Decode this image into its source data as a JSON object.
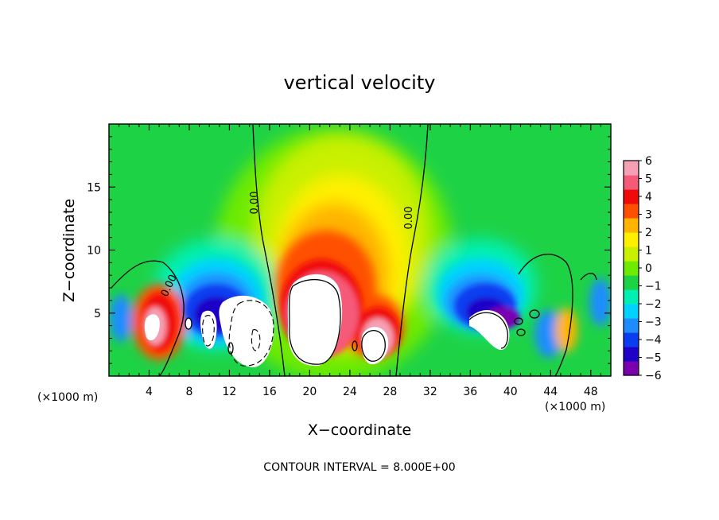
{
  "chart_data": {
    "type": "heatmap",
    "title": "vertical velocity",
    "xlabel": "X−coordinate",
    "ylabel": "Z−coordinate",
    "x_unit_label": "(×1000 m)",
    "y_unit_label": "(×1000 m)",
    "xlim": [
      0,
      50
    ],
    "ylim": [
      0,
      20
    ],
    "x_ticks": [
      4,
      8,
      12,
      16,
      20,
      24,
      28,
      32,
      36,
      40,
      44,
      48
    ],
    "x_tick_labels": [
      "4",
      "8",
      "12",
      "16",
      "20",
      "24",
      "28",
      "32",
      "36",
      "40",
      "44",
      "48"
    ],
    "y_ticks": [
      5,
      10,
      15
    ],
    "y_tick_labels": [
      "5",
      "10",
      "15"
    ],
    "colorbar": {
      "min": -6,
      "max": 6,
      "ticks": [
        6,
        5,
        4,
        3,
        2,
        1,
        0,
        -1,
        -2,
        -3,
        -4,
        -5,
        -6
      ],
      "tick_labels": [
        "6",
        "5",
        "4",
        "3",
        "2",
        "1",
        "0",
        "−1",
        "−2",
        "−3",
        "−4",
        "−5",
        "−6"
      ],
      "colors": [
        "#7a00b0",
        "#1e00c8",
        "#0a3cf0",
        "#1c8cff",
        "#00d2ff",
        "#00f0b4",
        "#1ed246",
        "#6eeb00",
        "#c8f000",
        "#fff000",
        "#ffb400",
        "#ff5000",
        "#f00a0a",
        "#f55a78",
        "#f5a0b4"
      ]
    },
    "contour_labels": [
      "0.00",
      "0.00",
      "0.00"
    ],
    "contour_interval_text": "CONTOUR INTERVAL = 8.000E+00",
    "features": [
      {
        "name": "central updraft core",
        "x_center": 19.5,
        "z_center": 5.5,
        "value_range": "> 6",
        "color": "white"
      },
      {
        "name": "upper updraft plume",
        "x_center": 23,
        "z_center": 10,
        "value": 2.5
      },
      {
        "name": "downdraft left of updraft",
        "x_center": 13.5,
        "z_center": 5,
        "value": -5.5
      },
      {
        "name": "downdraft right",
        "x_center": 37,
        "z_center": 5,
        "value": -5.5
      },
      {
        "name": "left updraft",
        "x_center": 5,
        "z_center": 4,
        "value": 5
      },
      {
        "name": "right updraft",
        "x_center": 26,
        "z_center": 3.5,
        "value": 6
      }
    ]
  }
}
